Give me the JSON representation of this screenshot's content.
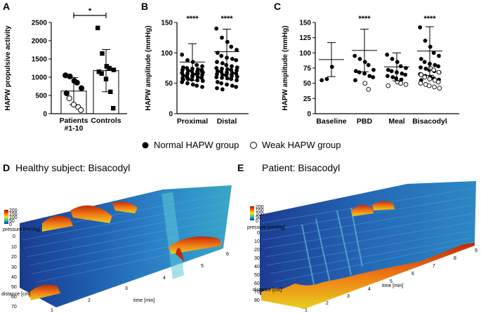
{
  "panel_labels": {
    "a": "A",
    "b": "B",
    "c": "C",
    "d": "D",
    "e": "E"
  },
  "chart_data": [
    {
      "type": "bar",
      "panel": "A",
      "ylabel": "HAPW propulsive activity",
      "ylim": [
        0,
        2500
      ],
      "yticks": [
        0,
        500,
        1000,
        1500,
        2000,
        2500
      ],
      "categories": [
        "Patients #1-10",
        "Controls"
      ],
      "category_lines": [
        [
          "Patients",
          "#1-10"
        ],
        [
          "Controls"
        ]
      ],
      "means": [
        620,
        1180
      ],
      "sd": [
        370,
        580
      ],
      "points": [
        [
          1050,
          1020,
          900,
          850,
          700,
          560,
          420,
          250,
          180,
          100
        ],
        [
          2350,
          1650,
          1300,
          1250,
          1200,
          1150,
          1100,
          950,
          600,
          150
        ]
      ],
      "significance": "*"
    },
    {
      "type": "scatter",
      "panel": "B",
      "ylabel": "HAPW amplitude (mmHg)",
      "ylim": [
        0,
        150
      ],
      "yticks": [
        0,
        50,
        100,
        150
      ],
      "categories": [
        "Proximal",
        "Distal"
      ],
      "means": [
        85,
        102
      ],
      "sd": [
        30,
        37
      ],
      "significance": [
        "****",
        "****"
      ],
      "points": [
        [
          97,
          88,
          85,
          80,
          78,
          76,
          75,
          74,
          73,
          72,
          72,
          71,
          70,
          69,
          68,
          67,
          66,
          65,
          65,
          64,
          63,
          62,
          61,
          60,
          59,
          58,
          57,
          56,
          55,
          54,
          52,
          50,
          48,
          46,
          44,
          56,
          60,
          63,
          66,
          70
        ],
        [
          140,
          125,
          118,
          110,
          105,
          100,
          95,
          92,
          90,
          88,
          85,
          83,
          80,
          78,
          76,
          75,
          74,
          73,
          72,
          71,
          70,
          69,
          68,
          67,
          66,
          65,
          64,
          63,
          62,
          61,
          60,
          59,
          58,
          57,
          55,
          52,
          50,
          48,
          46,
          44,
          42,
          40
        ]
      ]
    },
    {
      "type": "scatter",
      "panel": "C",
      "ylabel": "HAPW amplitude (mmHg)",
      "ylim": [
        0,
        150
      ],
      "yticks": [
        0,
        25,
        50,
        75,
        100,
        125,
        150
      ],
      "categories": [
        "Baseline",
        "PBD",
        "Meal",
        "Bisacodyl"
      ],
      "means": [
        89,
        104,
        77,
        103
      ],
      "sd": [
        28,
        35,
        23,
        40
      ],
      "significance": [
        "",
        "****",
        "",
        "****"
      ],
      "normal_points": [
        [
          55,
          57,
          77
        ],
        [
          95,
          90,
          85,
          80,
          72,
          70,
          68,
          66,
          62,
          60,
          55
        ],
        [
          97,
          90,
          85,
          78,
          75,
          72,
          70,
          68,
          66,
          64,
          62,
          60,
          58,
          56
        ],
        [
          142,
          120,
          110,
          100,
          95,
          90,
          85,
          82,
          80,
          78,
          76,
          74,
          72,
          70,
          68,
          65,
          62,
          60,
          58,
          56,
          55
        ]
      ],
      "weak_points": [
        [],
        [
          50,
          40
        ],
        [
          52,
          50,
          48,
          46
        ],
        [
          75,
          72,
          68,
          64,
          60,
          57,
          55,
          52,
          50,
          48,
          46,
          44,
          42
        ]
      ]
    }
  ],
  "legend": {
    "normal": "Normal HAPW group",
    "weak": "Weak HAPW group"
  },
  "manometry": [
    {
      "panel": "D",
      "title": "Healthy subject: Bisacodyl",
      "pressure_label": "pressure [mmHg]",
      "pressure_ticks": [
        "200",
        "150",
        "100",
        "50",
        "0"
      ],
      "distance_label": "distance [cm]",
      "distance_ticks": [
        "0",
        "10",
        "20",
        "30",
        "40",
        "50",
        "60",
        "70"
      ],
      "time_label": "time [min]",
      "time_ticks": [
        "1",
        "2",
        "3",
        "4",
        "5",
        "6"
      ]
    },
    {
      "panel": "E",
      "title": "Patient: Bisacodyl",
      "pressure_label": "pressure [mmHg]",
      "pressure_ticks": [
        "200",
        "150",
        "100",
        "50",
        "0"
      ],
      "distance_label": "distance [cm]",
      "distance_ticks": [
        "0",
        "10",
        "20",
        "30",
        "40",
        "50",
        "60",
        "70",
        "80"
      ],
      "time_label": "time [min]",
      "time_ticks": [
        "1",
        "2",
        "3",
        "4",
        "5",
        "6",
        "7",
        "8",
        "9"
      ]
    }
  ]
}
